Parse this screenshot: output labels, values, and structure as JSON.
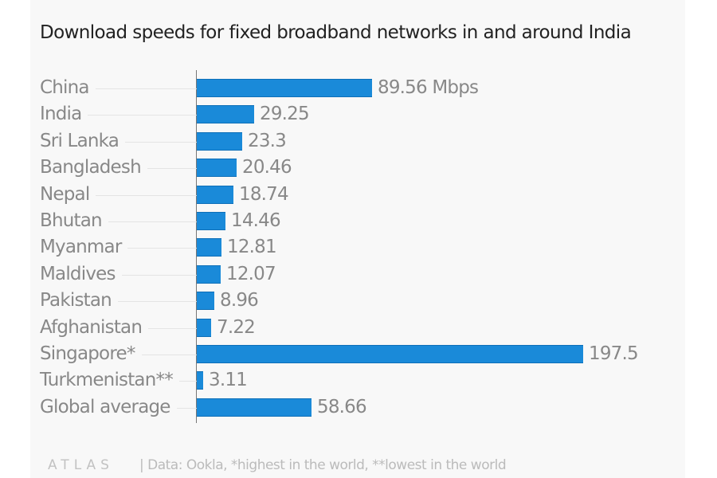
{
  "chart_data": {
    "type": "bar",
    "orientation": "horizontal",
    "title": "Download speeds for fixed broadband networks in and around India",
    "xlabel": "",
    "ylabel": "",
    "unit": "Mbps",
    "categories": [
      "China",
      "India",
      "Sri Lanka",
      "Bangladesh",
      "Nepal",
      "Bhutan",
      "Myanmar",
      "Maldives",
      "Pakistan",
      "Afghanistan",
      "Singapore*",
      "Turkmenistan**",
      "Global average"
    ],
    "values": [
      89.56,
      29.25,
      23.3,
      20.46,
      18.74,
      14.46,
      12.81,
      12.07,
      8.96,
      7.22,
      197.5,
      3.11,
      58.66
    ],
    "value_labels": [
      "89.56 Mbps",
      "29.25",
      "23.3",
      "20.46",
      "18.74",
      "14.46",
      "12.81",
      "12.07",
      "8.96",
      "7.22",
      "197.5",
      "3.11",
      "58.66"
    ],
    "xlim": [
      0,
      197.5
    ],
    "grid": false,
    "legend": null,
    "bar_color": "#1a8ad9"
  },
  "rows": [
    {
      "label": "China",
      "value": 89.56,
      "display": "89.56 Mbps"
    },
    {
      "label": "India",
      "value": 29.25,
      "display": "29.25"
    },
    {
      "label": "Sri Lanka",
      "value": 23.3,
      "display": "23.3"
    },
    {
      "label": "Bangladesh",
      "value": 20.46,
      "display": "20.46"
    },
    {
      "label": "Nepal",
      "value": 18.74,
      "display": "18.74"
    },
    {
      "label": "Bhutan",
      "value": 14.46,
      "display": "14.46"
    },
    {
      "label": "Myanmar",
      "value": 12.81,
      "display": "12.81"
    },
    {
      "label": "Maldives",
      "value": 12.07,
      "display": "12.07"
    },
    {
      "label": "Pakistan",
      "value": 8.96,
      "display": "8.96"
    },
    {
      "label": "Afghanistan",
      "value": 7.22,
      "display": "7.22"
    },
    {
      "label": "Singapore*",
      "value": 197.5,
      "display": "197.5"
    },
    {
      "label": "Turkmenistan**",
      "value": 3.11,
      "display": "3.11"
    },
    {
      "label": "Global average",
      "value": 58.66,
      "display": "58.66"
    }
  ],
  "footer": {
    "logo": "ATLAS",
    "source": "| Data: Ookla, *highest in the world, **lowest in the world"
  }
}
